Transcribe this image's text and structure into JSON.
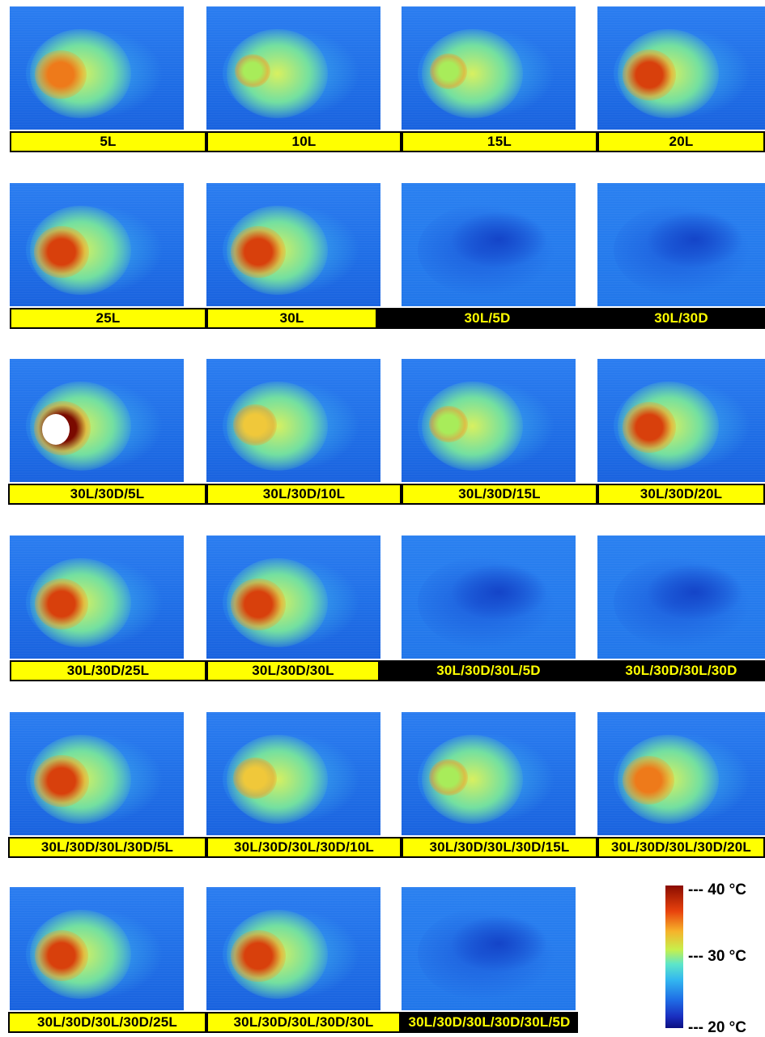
{
  "panels": [
    {
      "label": "5L",
      "type": "light",
      "heat": 0.85
    },
    {
      "label": "10L",
      "type": "light",
      "heat": 0.35
    },
    {
      "label": "15L",
      "type": "light",
      "heat": 0.4
    },
    {
      "label": "20L",
      "type": "light",
      "heat": 0.9
    },
    {
      "label": "25L",
      "type": "light",
      "heat": 0.95
    },
    {
      "label": "30L",
      "type": "light",
      "heat": 0.95
    },
    {
      "label": "30L/5D",
      "type": "dark",
      "heat": 0.05
    },
    {
      "label": "30L/30D",
      "type": "dark",
      "heat": 0.08
    },
    {
      "label": "30L/30D/5L",
      "type": "light",
      "heat": 1.0
    },
    {
      "label": "30L/30D/10L",
      "type": "light",
      "heat": 0.6
    },
    {
      "label": "30L/30D/15L",
      "type": "light",
      "heat": 0.45
    },
    {
      "label": "30L/30D/20L",
      "type": "light",
      "heat": 0.9
    },
    {
      "label": "30L/30D/25L",
      "type": "light",
      "heat": 0.9
    },
    {
      "label": "30L/30D/30L",
      "type": "light",
      "heat": 0.95
    },
    {
      "label": "30L/30D/30L/5D",
      "type": "dark",
      "heat": 0.05
    },
    {
      "label": "30L/30D/30L/30D",
      "type": "dark",
      "heat": 0.08
    },
    {
      "label": "30L/30D/30L/30D/5L",
      "type": "light",
      "heat": 0.95
    },
    {
      "label": "30L/30D/30L/30D/10L",
      "type": "light",
      "heat": 0.6
    },
    {
      "label": "30L/30D/30L/30D/15L",
      "type": "light",
      "heat": 0.45
    },
    {
      "label": "30L/30D/30L/30D/20L",
      "type": "light",
      "heat": 0.85
    },
    {
      "label": "30L/30D/30L/30D/25L",
      "type": "light",
      "heat": 0.9
    },
    {
      "label": "30L/30D/30L/30D/30L",
      "type": "light",
      "heat": 0.95
    },
    {
      "label": "30L/30D/30L/30D/30L/5D",
      "type": "dark",
      "heat": 0.05
    }
  ],
  "legend": {
    "max": "--- 40 °C",
    "mid": "--- 30 °C",
    "min": "--- 20 °C"
  },
  "colors": {
    "light_bar": "#ffff00",
    "dark_bar": "#000000",
    "background_blue": "#1f6ee6"
  }
}
